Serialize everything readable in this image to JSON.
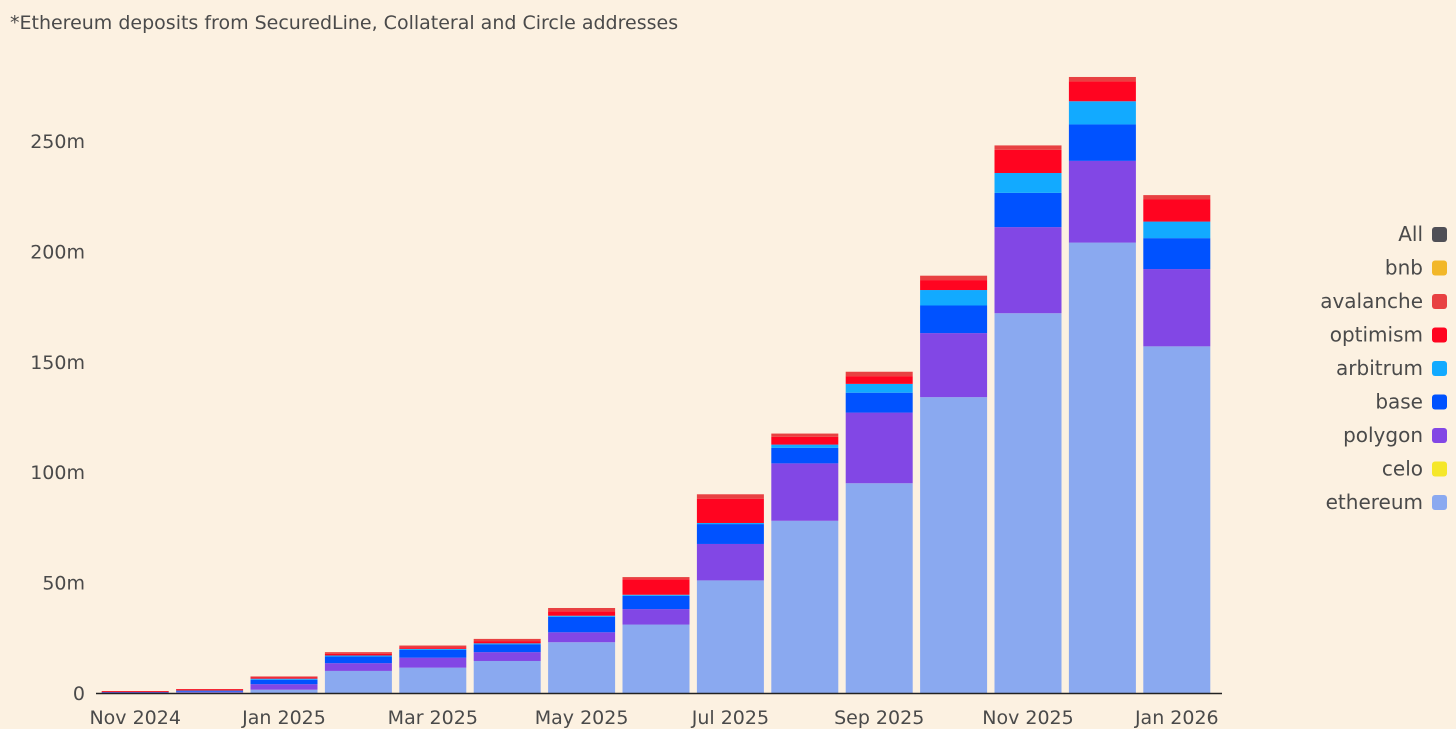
{
  "subtitle": "*Ethereum deposits from SecuredLine, Collateral and Circle addresses",
  "chart_data": {
    "type": "bar",
    "stacked": true,
    "title": "",
    "subtitle": "*Ethereum deposits from SecuredLine, Collateral and Circle addresses",
    "xlabel": "",
    "ylabel": "",
    "ylim": [
      0,
      290
    ],
    "y_unit": "m",
    "y_ticks": [
      0,
      50,
      100,
      150,
      200,
      250
    ],
    "y_tick_labels": [
      "0",
      "50m",
      "100m",
      "150m",
      "200m",
      "250m"
    ],
    "categories": [
      "Nov 2024",
      "Dec 2024",
      "Jan 2025",
      "Feb 2025",
      "Mar 2025",
      "Apr 2025",
      "May 2025",
      "Jun 2025",
      "Jul 2025",
      "Aug 2025",
      "Sep 2025",
      "Oct 2025",
      "Nov 2025",
      "Dec 2025",
      "Jan 2026"
    ],
    "x_tick_labels": [
      {
        "category": "Nov 2024",
        "label": "Nov 2024"
      },
      {
        "category": "Jan 2025",
        "label": "Jan 2025"
      },
      {
        "category": "Mar 2025",
        "label": "Mar 2025"
      },
      {
        "category": "May 2025",
        "label": "May 2025"
      },
      {
        "category": "Jul 2025",
        "label": "Jul 2025"
      },
      {
        "category": "Sep 2025",
        "label": "Sep 2025"
      },
      {
        "category": "Nov 2025",
        "label": "Nov 2025"
      },
      {
        "category": "Jan 2026",
        "label": "Jan 2026"
      }
    ],
    "legend_position": "right",
    "legend": [
      {
        "name": "All",
        "color": "#4f4f56"
      },
      {
        "name": "bnb",
        "color": "#f2b729"
      },
      {
        "name": "avalanche",
        "color": "#e84142"
      },
      {
        "name": "optimism",
        "color": "#ff0420"
      },
      {
        "name": "arbitrum",
        "color": "#12aaff"
      },
      {
        "name": "base",
        "color": "#0052ff"
      },
      {
        "name": "polygon",
        "color": "#8247e5"
      },
      {
        "name": "celo",
        "color": "#f5e72a"
      },
      {
        "name": "ethereum",
        "color": "#8aa9f0"
      }
    ],
    "series": [
      {
        "name": "ethereum",
        "color": "#8aa9f0",
        "values": [
          0,
          0.3,
          1.5,
          10,
          11.5,
          14.5,
          23,
          31,
          51,
          78,
          95,
          134,
          172,
          204,
          157
        ]
      },
      {
        "name": "celo",
        "color": "#f5e72a",
        "values": [
          0,
          0,
          0,
          0,
          0,
          0,
          0,
          0,
          0,
          0,
          0,
          0,
          0,
          0,
          0
        ]
      },
      {
        "name": "polygon",
        "color": "#8247e5",
        "values": [
          0.2,
          0.3,
          2.5,
          3.5,
          4.5,
          4,
          4.5,
          7,
          16.5,
          26,
          32,
          29,
          39,
          37,
          35
        ]
      },
      {
        "name": "base",
        "color": "#0052ff",
        "values": [
          0.2,
          0.3,
          2,
          3,
          3.5,
          3.5,
          7,
          6,
          9,
          7,
          9,
          12.5,
          15.5,
          16.5,
          14
        ]
      },
      {
        "name": "arbitrum",
        "color": "#12aaff",
        "values": [
          0,
          0.2,
          0.5,
          0.5,
          0.5,
          0.5,
          0.5,
          0.5,
          0.5,
          1.5,
          4,
          7,
          9,
          10.5,
          7.5
        ]
      },
      {
        "name": "optimism",
        "color": "#ff0420",
        "values": [
          0.3,
          0.5,
          0.5,
          0.7,
          0.7,
          1,
          2,
          7,
          11,
          3.5,
          3.5,
          4.5,
          10.5,
          9,
          10
        ]
      },
      {
        "name": "avalanche",
        "color": "#e84142",
        "values": [
          0.2,
          0.2,
          0.5,
          0.8,
          0.8,
          1,
          1.5,
          1,
          2,
          1.5,
          2,
          2,
          2,
          2,
          2
        ]
      },
      {
        "name": "bnb",
        "color": "#f2b729",
        "values": [
          0,
          0,
          0,
          0,
          0,
          0,
          0,
          0,
          0,
          0,
          0,
          0,
          0,
          0,
          0
        ]
      }
    ]
  }
}
